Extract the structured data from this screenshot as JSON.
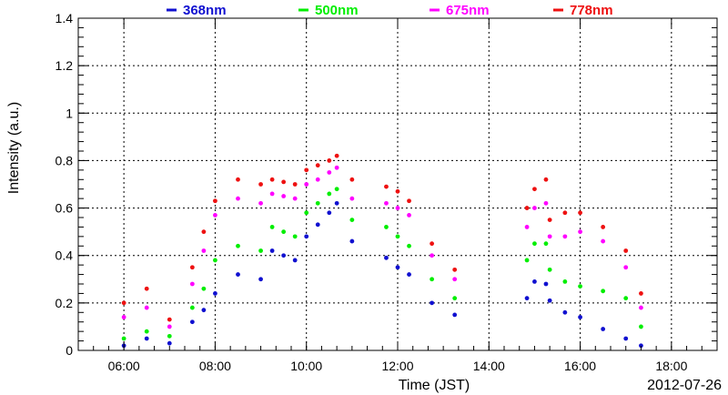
{
  "chart_data": {
    "type": "scatter",
    "ylabel": "Intensity (a.u.)",
    "xlabel": "Time (JST)",
    "date_label": "2012-07-26",
    "xlim": [
      "05:00",
      "19:00"
    ],
    "ylim": [
      0,
      1.4
    ],
    "xticks": [
      "06:00",
      "08:00",
      "10:00",
      "12:00",
      "14:00",
      "16:00",
      "18:00"
    ],
    "yticks": [
      "0",
      "0.2",
      "0.4",
      "0.6",
      "0.8",
      "1",
      "1.2",
      "1.4"
    ],
    "grid": true,
    "legend_position": "top",
    "series": [
      {
        "name": "368nm",
        "color": "#1010d0",
        "points": [
          [
            "06:00",
            0.02
          ],
          [
            "06:30",
            0.05
          ],
          [
            "07:00",
            0.03
          ],
          [
            "07:30",
            0.12
          ],
          [
            "07:45",
            0.17
          ],
          [
            "08:00",
            0.24
          ],
          [
            "08:30",
            0.32
          ],
          [
            "09:00",
            0.3
          ],
          [
            "09:15",
            0.42
          ],
          [
            "09:30",
            0.4
          ],
          [
            "09:45",
            0.38
          ],
          [
            "10:00",
            0.48
          ],
          [
            "10:15",
            0.53
          ],
          [
            "10:30",
            0.58
          ],
          [
            "10:40",
            0.62
          ],
          [
            "11:00",
            0.46
          ],
          [
            "11:45",
            0.39
          ],
          [
            "12:00",
            0.35
          ],
          [
            "12:15",
            0.32
          ],
          [
            "12:45",
            0.2
          ],
          [
            "13:15",
            0.15
          ],
          [
            "14:50",
            0.22
          ],
          [
            "15:00",
            0.29
          ],
          [
            "15:15",
            0.28
          ],
          [
            "15:20",
            0.21
          ],
          [
            "15:40",
            0.16
          ],
          [
            "16:00",
            0.14
          ],
          [
            "16:30",
            0.09
          ],
          [
            "17:00",
            0.05
          ],
          [
            "17:20",
            0.02
          ]
        ]
      },
      {
        "name": "500nm",
        "color": "#00ee00",
        "points": [
          [
            "06:00",
            0.05
          ],
          [
            "06:30",
            0.08
          ],
          [
            "07:00",
            0.06
          ],
          [
            "07:30",
            0.18
          ],
          [
            "07:45",
            0.26
          ],
          [
            "08:00",
            0.38
          ],
          [
            "08:30",
            0.44
          ],
          [
            "09:00",
            0.42
          ],
          [
            "09:15",
            0.52
          ],
          [
            "09:30",
            0.5
          ],
          [
            "09:45",
            0.48
          ],
          [
            "10:00",
            0.58
          ],
          [
            "10:15",
            0.62
          ],
          [
            "10:30",
            0.66
          ],
          [
            "10:40",
            0.68
          ],
          [
            "11:00",
            0.55
          ],
          [
            "11:45",
            0.52
          ],
          [
            "12:00",
            0.48
          ],
          [
            "12:15",
            0.44
          ],
          [
            "12:45",
            0.3
          ],
          [
            "13:15",
            0.22
          ],
          [
            "14:50",
            0.38
          ],
          [
            "15:00",
            0.45
          ],
          [
            "15:15",
            0.45
          ],
          [
            "15:20",
            0.34
          ],
          [
            "15:40",
            0.29
          ],
          [
            "16:00",
            0.27
          ],
          [
            "16:30",
            0.25
          ],
          [
            "17:00",
            0.22
          ],
          [
            "17:20",
            0.1
          ]
        ]
      },
      {
        "name": "675nm",
        "color": "#ff00ff",
        "points": [
          [
            "06:00",
            0.14
          ],
          [
            "06:30",
            0.18
          ],
          [
            "07:00",
            0.1
          ],
          [
            "07:30",
            0.28
          ],
          [
            "07:45",
            0.42
          ],
          [
            "08:00",
            0.57
          ],
          [
            "08:30",
            0.64
          ],
          [
            "09:00",
            0.62
          ],
          [
            "09:15",
            0.66
          ],
          [
            "09:30",
            0.65
          ],
          [
            "09:45",
            0.64
          ],
          [
            "10:00",
            0.7
          ],
          [
            "10:15",
            0.72
          ],
          [
            "10:30",
            0.75
          ],
          [
            "10:40",
            0.77
          ],
          [
            "11:00",
            0.64
          ],
          [
            "11:45",
            0.62
          ],
          [
            "12:00",
            0.6
          ],
          [
            "12:15",
            0.57
          ],
          [
            "12:45",
            0.4
          ],
          [
            "13:15",
            0.3
          ],
          [
            "14:50",
            0.52
          ],
          [
            "15:00",
            0.6
          ],
          [
            "15:15",
            0.62
          ],
          [
            "15:20",
            0.48
          ],
          [
            "15:40",
            0.48
          ],
          [
            "16:00",
            0.5
          ],
          [
            "16:30",
            0.46
          ],
          [
            "17:00",
            0.35
          ],
          [
            "17:20",
            0.18
          ]
        ]
      },
      {
        "name": "778nm",
        "color": "#ee1111",
        "points": [
          [
            "06:00",
            0.2
          ],
          [
            "06:30",
            0.26
          ],
          [
            "07:00",
            0.13
          ],
          [
            "07:30",
            0.35
          ],
          [
            "07:45",
            0.5
          ],
          [
            "08:00",
            0.63
          ],
          [
            "08:30",
            0.72
          ],
          [
            "09:00",
            0.7
          ],
          [
            "09:15",
            0.72
          ],
          [
            "09:30",
            0.71
          ],
          [
            "09:45",
            0.7
          ],
          [
            "10:00",
            0.76
          ],
          [
            "10:15",
            0.78
          ],
          [
            "10:30",
            0.8
          ],
          [
            "10:40",
            0.82
          ],
          [
            "11:00",
            0.72
          ],
          [
            "11:45",
            0.69
          ],
          [
            "12:00",
            0.67
          ],
          [
            "12:15",
            0.63
          ],
          [
            "12:45",
            0.45
          ],
          [
            "13:15",
            0.34
          ],
          [
            "14:50",
            0.6
          ],
          [
            "15:00",
            0.68
          ],
          [
            "15:15",
            0.72
          ],
          [
            "15:20",
            0.55
          ],
          [
            "15:40",
            0.58
          ],
          [
            "16:00",
            0.58
          ],
          [
            "16:30",
            0.52
          ],
          [
            "17:00",
            0.42
          ],
          [
            "17:20",
            0.24
          ]
        ]
      }
    ]
  }
}
